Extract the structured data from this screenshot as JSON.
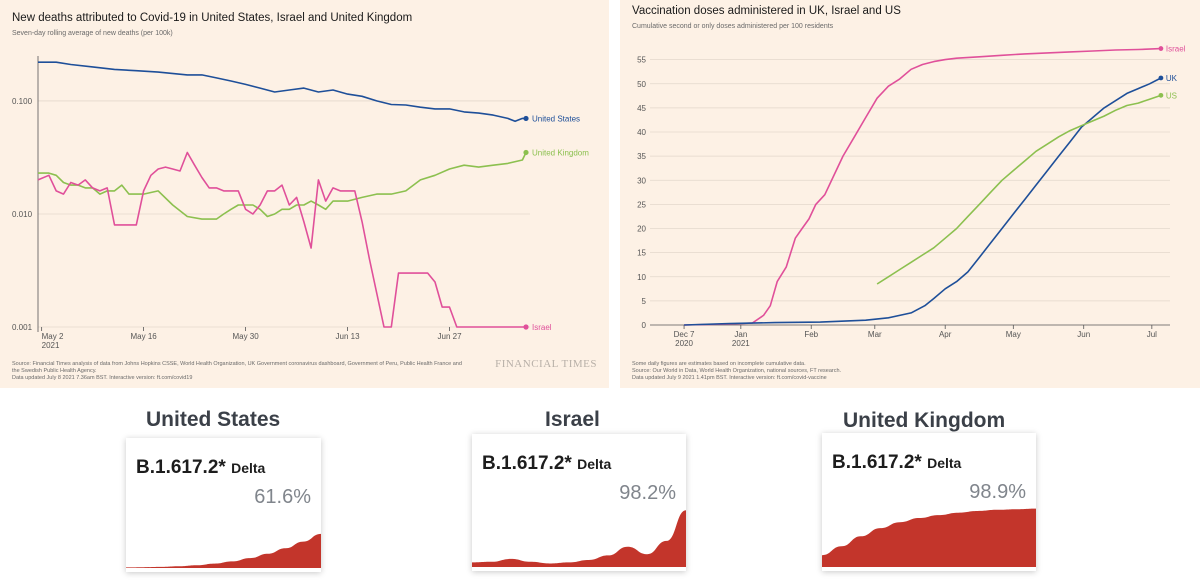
{
  "colors": {
    "panel_bg": "#fdf1e5",
    "us": "#1e4f99",
    "uk": "#8cc04f",
    "israel": "#e0509a",
    "delta_fill": "#c3352b",
    "axis_text": "#555555"
  },
  "deaths_panel": {
    "title": "New deaths attributed to Covid-19 in United States, Israel and United Kingdom",
    "subtitle": "Seven-day rolling average of new deaths (per 100k)",
    "source": [
      "Source: Financial Times analysis of data from Johns Hopkins CSSE, World Health Organization, UK Government coronavirus dashboard, Government of Peru, Public Health France and",
      "the Swedish Public Health Agency.",
      "Data updated July 8 2021 7.36am BST. Interactive version: ft.com/covid19"
    ],
    "logo": "FINANCIAL TIMES"
  },
  "vax_panel": {
    "title": "Vaccination doses administered in UK, Israel and US",
    "subtitle": "Cumulative second or only doses administered per 100 residents",
    "source": [
      "Some daily figures are estimates based on incomplete cumulative data.",
      "Source: Our World in Data, World Health Organization, national sources, FT research.",
      "Data updated July 9 2021 1.41pm BST. Interactive version: ft.com/covid-vaccine"
    ]
  },
  "chart_data": [
    {
      "type": "line",
      "title": "New deaths attributed to Covid-19 in United States, Israel and United Kingdom",
      "subtitle": "Seven-day rolling average of new deaths (per 100k)",
      "y_scale": "log",
      "ylim": [
        0.001,
        0.3
      ],
      "y_ticks": [
        0.001,
        0.01,
        0.1
      ],
      "y_tick_labels": [
        "0.001",
        "0.010",
        "0.100"
      ],
      "x_ticks": [
        "May 2 2021",
        "May 16",
        "May 30",
        "Jun 13",
        "Jun 27"
      ],
      "x_tick_day": [
        0,
        14,
        28,
        42,
        56
      ],
      "x_day_zero": "2021-05-02",
      "grid": "horizontal",
      "legend": "end-of-line labels",
      "series": [
        {
          "name": "United States",
          "color": "#1e4f99",
          "x": [
            -0.5,
            2,
            4,
            7,
            10,
            13,
            16,
            20,
            22,
            24,
            26,
            28,
            30,
            32,
            34,
            36,
            38,
            40,
            42,
            44,
            46,
            48,
            50,
            52,
            54,
            56,
            58,
            60,
            62,
            64,
            65,
            66,
            66.5
          ],
          "y": [
            0.22,
            0.22,
            0.21,
            0.2,
            0.19,
            0.185,
            0.18,
            0.17,
            0.17,
            0.16,
            0.15,
            0.14,
            0.13,
            0.12,
            0.125,
            0.13,
            0.12,
            0.125,
            0.115,
            0.11,
            0.1,
            0.093,
            0.092,
            0.088,
            0.085,
            0.085,
            0.08,
            0.078,
            0.075,
            0.07,
            0.066,
            0.07,
            0.07
          ]
        },
        {
          "name": "United Kingdom",
          "color": "#8cc04f",
          "x": [
            -0.5,
            1,
            2,
            3,
            4,
            5,
            6,
            7,
            8,
            9,
            10,
            11,
            12,
            14,
            16,
            18,
            20,
            22,
            24,
            25,
            26,
            27,
            28,
            29,
            30,
            31,
            32,
            33,
            34,
            35,
            36,
            37,
            38,
            39,
            40,
            41,
            42,
            44,
            46,
            48,
            50,
            52,
            54,
            56,
            58,
            60,
            62,
            64,
            66,
            66.5
          ],
          "y": [
            0.023,
            0.023,
            0.022,
            0.019,
            0.018,
            0.018,
            0.017,
            0.017,
            0.015,
            0.016,
            0.016,
            0.018,
            0.015,
            0.015,
            0.016,
            0.012,
            0.0095,
            0.009,
            0.009,
            0.01,
            0.011,
            0.012,
            0.012,
            0.012,
            0.011,
            0.0095,
            0.01,
            0.011,
            0.011,
            0.012,
            0.012,
            0.013,
            0.012,
            0.011,
            0.013,
            0.013,
            0.013,
            0.014,
            0.015,
            0.015,
            0.016,
            0.02,
            0.022,
            0.025,
            0.027,
            0.026,
            0.027,
            0.028,
            0.03,
            0.035
          ]
        },
        {
          "name": "Israel",
          "color": "#e0509a",
          "x": [
            -0.5,
            1,
            2,
            3,
            4,
            5,
            6,
            7,
            8,
            9,
            10,
            11,
            12,
            13,
            14,
            15,
            16,
            17,
            18,
            19,
            20,
            21,
            22,
            23,
            24,
            25,
            26,
            27,
            28,
            29,
            30,
            31,
            32,
            33,
            34,
            35,
            36,
            37,
            38,
            39,
            40,
            41,
            42,
            43,
            44,
            45,
            46,
            47,
            48,
            49,
            50,
            51,
            52,
            53,
            54,
            55,
            56,
            57,
            58,
            59,
            60,
            61,
            62,
            63,
            64,
            65,
            66,
            66.5
          ],
          "y": [
            0.02,
            0.022,
            0.016,
            0.015,
            0.019,
            0.018,
            0.02,
            0.017,
            0.016,
            0.017,
            0.008,
            0.008,
            0.008,
            0.008,
            0.016,
            0.022,
            0.025,
            0.026,
            0.025,
            0.024,
            0.035,
            0.027,
            0.021,
            0.017,
            0.017,
            0.016,
            0.016,
            0.016,
            0.011,
            0.01,
            0.012,
            0.016,
            0.016,
            0.018,
            0.012,
            0.014,
            0.0085,
            0.005,
            0.02,
            0.013,
            0.017,
            0.016,
            0.016,
            0.016,
            0.0085,
            0.004,
            0.002,
            0.001,
            0.001,
            0.003,
            0.003,
            0.003,
            0.003,
            0.003,
            0.0025,
            0.0015,
            0.0015,
            0.001,
            0.001,
            0.001,
            0.001,
            0.001,
            0.001,
            0.001,
            0.001,
            0.001,
            0.001,
            0.001
          ]
        }
      ]
    },
    {
      "type": "line",
      "title": "Vaccination doses administered in UK, Israel and US",
      "subtitle": "Cumulative second or only doses administered per 100 residents",
      "ylim": [
        0,
        57
      ],
      "y_ticks": [
        0,
        5,
        10,
        15,
        20,
        25,
        30,
        35,
        40,
        45,
        50,
        55
      ],
      "x_ticks": [
        "Dec 7 2020",
        "Jan 2021",
        "Feb",
        "Mar",
        "Apr",
        "May",
        "Jun",
        "Jul"
      ],
      "x_tick_day": [
        0,
        25,
        56,
        84,
        115,
        145,
        176,
        206
      ],
      "x_day_zero": "2020-12-07",
      "grid": "horizontal",
      "legend": "end-of-line labels",
      "series": [
        {
          "name": "Israel",
          "color": "#e0509a",
          "x": [
            0,
            20,
            30,
            35,
            38,
            41,
            45,
            49,
            52,
            55,
            58,
            62,
            66,
            70,
            75,
            80,
            85,
            90,
            95,
            100,
            105,
            110,
            115,
            120,
            130,
            140,
            150,
            160,
            170,
            180,
            190,
            200,
            210
          ],
          "y": [
            0,
            0.2,
            0.4,
            2,
            4,
            9,
            12,
            18,
            20,
            22,
            25,
            27,
            31,
            35,
            39,
            43,
            47,
            49.5,
            51,
            53,
            54,
            54.6,
            55,
            55.3,
            55.6,
            55.9,
            56.2,
            56.4,
            56.6,
            56.8,
            57,
            57.1,
            57.3
          ]
        },
        {
          "name": "UK",
          "color": "#1e4f99",
          "x": [
            0,
            20,
            40,
            60,
            80,
            90,
            100,
            106,
            110,
            115,
            120,
            125,
            130,
            135,
            140,
            145,
            150,
            155,
            160,
            165,
            170,
            175,
            180,
            185,
            190,
            195,
            200,
            205,
            210
          ],
          "y": [
            0,
            0.3,
            0.5,
            0.6,
            1,
            1.5,
            2.5,
            4,
            5.5,
            7.5,
            9,
            11,
            14,
            17,
            20,
            23,
            26,
            29,
            32,
            35,
            38,
            41,
            43,
            45,
            46.5,
            48,
            49,
            50,
            51.2
          ]
        },
        {
          "name": "US",
          "color": "#8cc04f",
          "x": [
            85,
            90,
            95,
            100,
            105,
            110,
            115,
            120,
            125,
            130,
            135,
            140,
            145,
            150,
            155,
            160,
            165,
            170,
            175,
            180,
            185,
            190,
            195,
            200,
            205,
            210
          ],
          "y": [
            8.5,
            10,
            11.5,
            13,
            14.5,
            16,
            18,
            20,
            22.5,
            25,
            27.5,
            30,
            32,
            34,
            36,
            37.5,
            39,
            40.3,
            41.3,
            42.3,
            43.3,
            44.5,
            45.5,
            46,
            46.8,
            47.6
          ]
        }
      ]
    },
    {
      "type": "area",
      "title": "United States",
      "variant": "B.1.617.2*",
      "variant_name": "Delta",
      "share": "61.6%",
      "values": [
        0.01,
        0.015,
        0.02,
        0.03,
        0.05,
        0.08,
        0.12,
        0.18,
        0.26,
        0.36,
        0.48,
        0.62
      ]
    },
    {
      "type": "area",
      "title": "Israel",
      "variant": "B.1.617.2*",
      "variant_name": "Delta",
      "share": "98.2%",
      "values": [
        0.08,
        0.09,
        0.14,
        0.09,
        0.06,
        0.08,
        0.12,
        0.2,
        0.35,
        0.22,
        0.45,
        0.98
      ]
    },
    {
      "type": "area",
      "title": "United Kingdom",
      "variant": "B.1.617.2*",
      "variant_name": "Delta",
      "share": "98.9%",
      "values": [
        0.2,
        0.35,
        0.52,
        0.66,
        0.76,
        0.83,
        0.88,
        0.92,
        0.95,
        0.97,
        0.98,
        0.99
      ]
    }
  ]
}
